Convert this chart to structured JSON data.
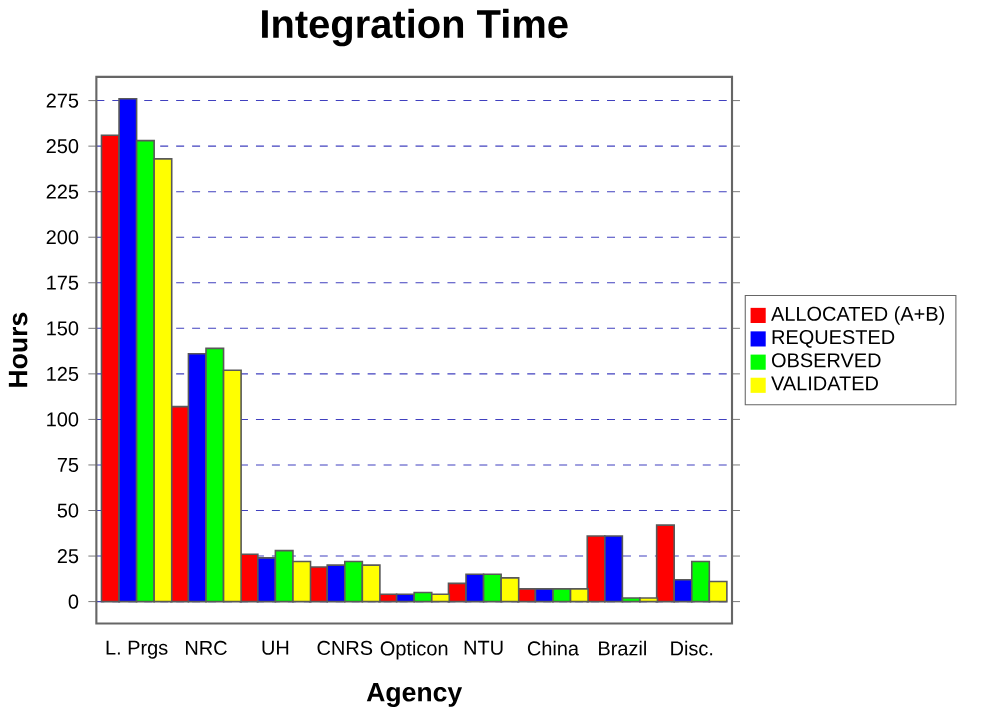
{
  "chart_data": {
    "type": "bar",
    "title": "Integration Time",
    "xlabel": "Agency",
    "ylabel": "Hours",
    "categories": [
      "L. Prgs",
      "NRC",
      "UH",
      "CNRS",
      "Opticon",
      "NTU",
      "China",
      "Brazil",
      "Disc."
    ],
    "series": [
      {
        "name": "ALLOCATED (A+B)",
        "color": "#ff0000",
        "values": [
          256,
          107,
          26,
          19,
          4,
          10,
          7,
          36,
          42
        ]
      },
      {
        "name": "REQUESTED",
        "color": "#0000ff",
        "values": [
          276,
          136,
          24,
          20,
          4,
          15,
          7,
          36,
          12
        ]
      },
      {
        "name": "OBSERVED",
        "color": "#00ff00",
        "values": [
          253,
          139,
          28,
          22,
          5,
          15,
          7,
          2,
          22
        ]
      },
      {
        "name": "VALIDATED",
        "color": "#ffff00",
        "values": [
          243,
          127,
          22,
          20,
          4,
          13,
          7,
          2,
          11
        ]
      }
    ],
    "ylim": [
      -12,
      288
    ],
    "yticks": [
      0,
      25,
      50,
      75,
      100,
      125,
      150,
      175,
      200,
      225,
      250,
      275
    ],
    "grid": "y",
    "legend": "right"
  }
}
